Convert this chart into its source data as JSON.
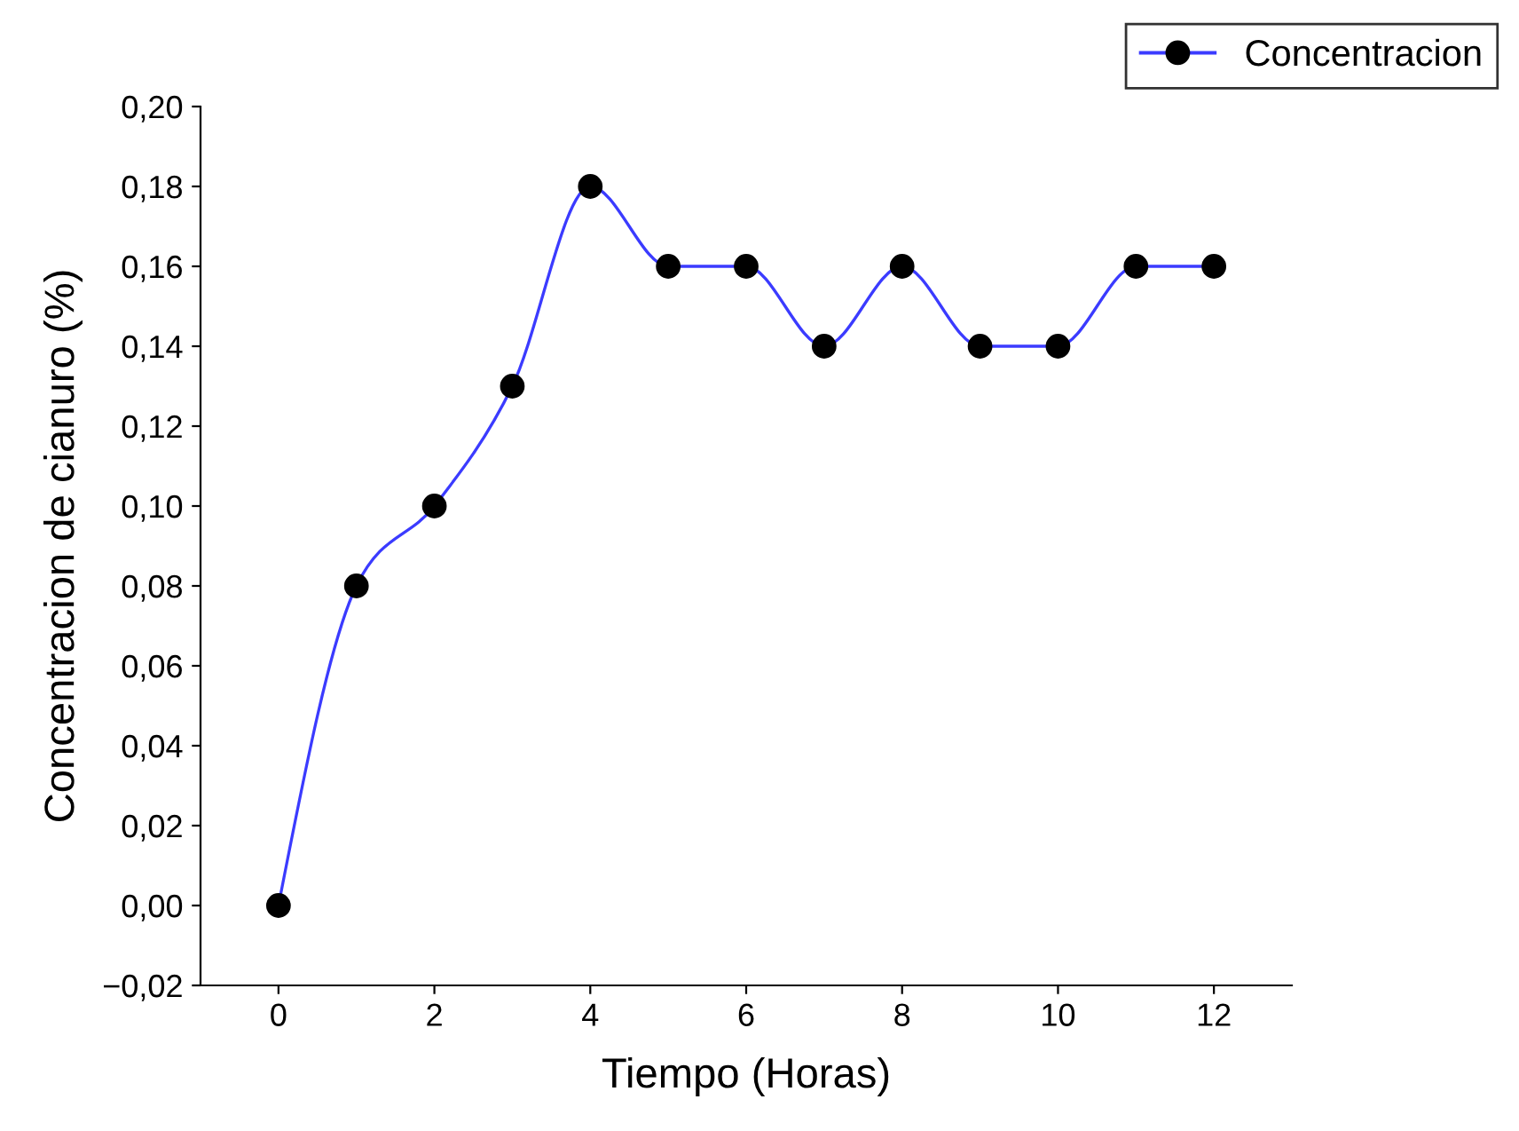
{
  "chart_data": {
    "type": "line",
    "xlabel": "Tiempo (Horas)",
    "ylabel": "Concentracion de cianuro (%)",
    "x": [
      0,
      1,
      2,
      3,
      4,
      5,
      6,
      7,
      8,
      9,
      10,
      11,
      12
    ],
    "series": [
      {
        "name": "Concentracion",
        "color": "#3b3bff",
        "values": [
          0.0,
          0.08,
          0.1,
          0.13,
          0.18,
          0.16,
          0.16,
          0.14,
          0.16,
          0.14,
          0.14,
          0.16,
          0.16
        ]
      }
    ],
    "marker": "circle",
    "line_style": "solid",
    "grid": false,
    "legend": "top right",
    "xlim": [
      -1,
      13
    ],
    "xticks": [
      0,
      2,
      4,
      6,
      8,
      10,
      12
    ],
    "ylim": [
      -0.02,
      0.2
    ],
    "yticks": [
      {
        "value": -0.02,
        "label": "−0,02"
      },
      {
        "value": 0.0,
        "label": "0,00"
      },
      {
        "value": 0.02,
        "label": "0,02"
      },
      {
        "value": 0.04,
        "label": "0,04"
      },
      {
        "value": 0.06,
        "label": "0,06"
      },
      {
        "value": 0.08,
        "label": "0,08"
      },
      {
        "value": 0.1,
        "label": "0,10"
      },
      {
        "value": 0.12,
        "label": "0,12"
      },
      {
        "value": 0.14,
        "label": "0,14"
      },
      {
        "value": 0.16,
        "label": "0,16"
      },
      {
        "value": 0.18,
        "label": "0,18"
      },
      {
        "value": 0.2,
        "label": "0,20"
      }
    ]
  }
}
